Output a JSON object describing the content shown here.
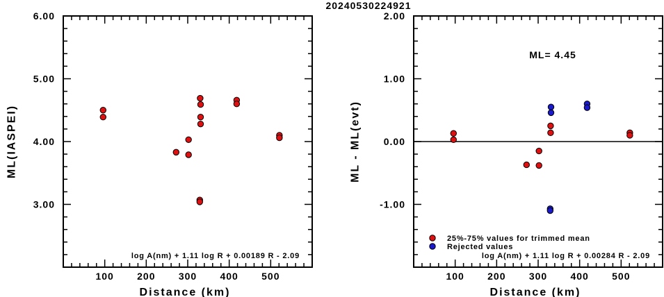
{
  "title": "20240530224921",
  "chart_data": [
    {
      "type": "scatter",
      "xlabel": "Distance (km)",
      "ylabel": "ML(IASPEI)",
      "xlim": [
        0,
        600
      ],
      "ylim": [
        2.0,
        6.0
      ],
      "x_ticks": [
        100,
        200,
        300,
        400,
        500
      ],
      "y_ticks": [
        3.0,
        4.0,
        5.0,
        6.0
      ],
      "x_tick_labels": [
        "100",
        "200",
        "300",
        "400",
        "500"
      ],
      "y_tick_labels": [
        "3.00",
        "4.00",
        "5.00",
        "6.00"
      ],
      "grid": false,
      "formula": "log A(nm) + 1.11 log R + 0.00189 R - 2.09",
      "series": [
        {
          "color": "#dd1111",
          "points": [
            [
              96,
              4.5
            ],
            [
              96,
              4.39
            ],
            [
              272,
              3.83
            ],
            [
              302,
              4.03
            ],
            [
              302,
              3.79
            ],
            [
              330,
              4.69
            ],
            [
              331,
              4.59
            ],
            [
              331,
              4.39
            ],
            [
              331,
              4.28
            ],
            [
              329,
              3.07
            ],
            [
              329,
              3.04
            ],
            [
              418,
              4.66
            ],
            [
              418,
              4.6
            ],
            [
              521,
              4.1
            ],
            [
              521,
              4.06
            ]
          ]
        }
      ]
    },
    {
      "type": "scatter",
      "xlabel": "Distance (km)",
      "ylabel": "ML - ML(evt)",
      "xlim": [
        0,
        600
      ],
      "ylim": [
        -2.0,
        2.0
      ],
      "x_ticks": [
        100,
        200,
        300,
        400,
        500
      ],
      "y_ticks": [
        -1.0,
        0.0,
        1.0,
        2.0
      ],
      "x_tick_labels": [
        "100",
        "200",
        "300",
        "400",
        "500"
      ],
      "y_tick_labels": [
        "-1.00",
        "0.00",
        "1.00",
        "2.00"
      ],
      "grid": false,
      "zero_line": 0.0,
      "annotation": "ML= 4.45",
      "formula": "log A(nm) + 1.11 log R + 0.00284 R - 2.09",
      "legend": {
        "placement": "bottom-left",
        "entries": [
          {
            "label": "25%-75% values for trimmed mean",
            "color": "#dd1111"
          },
          {
            "label": "Rejected values",
            "color": "#1a1acc"
          }
        ]
      },
      "series": [
        {
          "color": "#dd1111",
          "points": [
            [
              96,
              0.13
            ],
            [
              96,
              0.03
            ],
            [
              272,
              -0.37
            ],
            [
              302,
              -0.15
            ],
            [
              302,
              -0.38
            ],
            [
              330,
              0.25
            ],
            [
              330,
              0.14
            ],
            [
              521,
              0.14
            ],
            [
              521,
              0.1
            ]
          ]
        },
        {
          "color": "#1a1acc",
          "points": [
            [
              331,
              0.55
            ],
            [
              331,
              0.46
            ],
            [
              329,
              -1.07
            ],
            [
              329,
              -1.1
            ],
            [
              418,
              0.6
            ],
            [
              418,
              0.54
            ]
          ]
        }
      ]
    }
  ]
}
